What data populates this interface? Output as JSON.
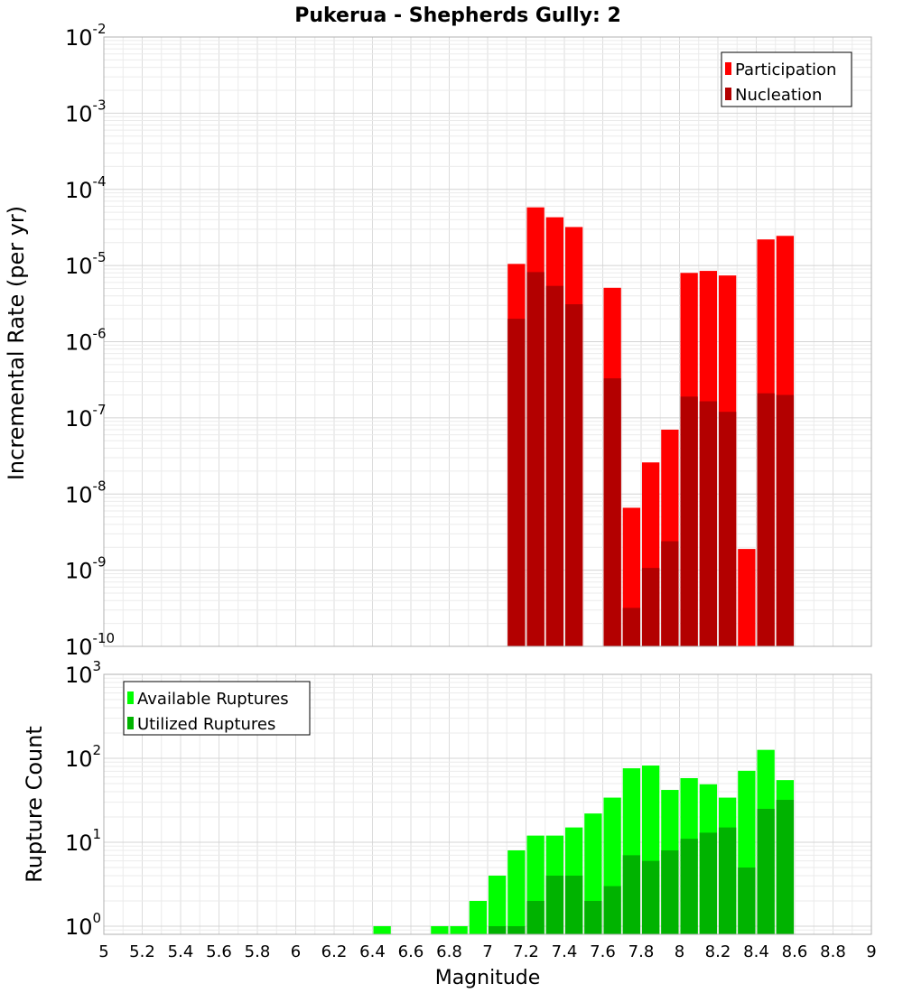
{
  "title": "Pukerua - Shepherds Gully: 2",
  "chart_data": [
    {
      "type": "bar",
      "ylabel": "Incremental Rate (per yr)",
      "xlabel": "",
      "y_scale": "log",
      "ylim": [
        1e-10,
        0.01
      ],
      "xlim": [
        5,
        9
      ],
      "ytick_labels": [
        {
          "base": "10",
          "exp": "-10",
          "value": 1e-10
        },
        {
          "base": "10",
          "exp": "-9",
          "value": 1e-09
        },
        {
          "base": "10",
          "exp": "-8",
          "value": 1e-08
        },
        {
          "base": "10",
          "exp": "-7",
          "value": 1e-07
        },
        {
          "base": "10",
          "exp": "-6",
          "value": 1e-06
        },
        {
          "base": "10",
          "exp": "-5",
          "value": 1e-05
        },
        {
          "base": "10",
          "exp": "-4",
          "value": 0.0001
        },
        {
          "base": "10",
          "exp": "-3",
          "value": 0.001
        },
        {
          "base": "10",
          "exp": "-2",
          "value": 0.01
        }
      ],
      "legend": {
        "position": "top-right",
        "entries": [
          "Participation",
          "Nucleation"
        ]
      },
      "grid": true,
      "series": [
        {
          "name": "Participation",
          "color": "#ff0000",
          "x": [
            7.15,
            7.25,
            7.35,
            7.45,
            7.65,
            7.75,
            7.85,
            7.95,
            8.05,
            8.15,
            8.25,
            8.35,
            8.45,
            8.55
          ],
          "values": [
            1.05e-05,
            5.8e-05,
            4.3e-05,
            3.2e-05,
            5.1e-06,
            6.6e-09,
            2.6e-08,
            7e-08,
            8e-06,
            8.5e-06,
            7.4e-06,
            1.9e-09,
            2.2e-05,
            2.45e-05
          ]
        },
        {
          "name": "Nucleation",
          "color": "#b30000",
          "x": [
            7.15,
            7.25,
            7.35,
            7.45,
            7.65,
            7.75,
            7.85,
            7.95,
            8.05,
            8.15,
            8.25,
            8.45,
            8.55
          ],
          "values": [
            2e-06,
            8.2e-06,
            5.4e-06,
            3.1e-06,
            3.3e-07,
            3.2e-10,
            1.07e-09,
            2.4e-09,
            1.9e-07,
            1.65e-07,
            1.2e-07,
            2.1e-07,
            2e-07
          ]
        }
      ]
    },
    {
      "type": "bar",
      "ylabel": "Rupture Count",
      "xlabel": "Magnitude",
      "y_scale": "log",
      "ylim": [
        0.8,
        1000
      ],
      "xlim": [
        5,
        9
      ],
      "ytick_labels": [
        {
          "base": "10",
          "exp": "0",
          "value": 1
        },
        {
          "base": "10",
          "exp": "1",
          "value": 10
        },
        {
          "base": "10",
          "exp": "2",
          "value": 100
        },
        {
          "base": "10",
          "exp": "3",
          "value": 1000
        }
      ],
      "xtick_labels": [
        "5",
        "5.2",
        "5.4",
        "5.6",
        "5.8",
        "6",
        "6.2",
        "6.4",
        "6.6",
        "6.8",
        "7",
        "7.2",
        "7.4",
        "7.6",
        "7.8",
        "8",
        "8.2",
        "8.4",
        "8.6",
        "8.8",
        "9"
      ],
      "legend": {
        "position": "top-left",
        "entries": [
          "Available Ruptures",
          "Utilized Ruptures"
        ]
      },
      "grid": true,
      "series": [
        {
          "name": "Available Ruptures",
          "color": "#00ff00",
          "x": [
            6.45,
            6.75,
            6.85,
            6.95,
            7.05,
            7.15,
            7.25,
            7.35,
            7.45,
            7.55,
            7.65,
            7.75,
            7.85,
            7.95,
            8.05,
            8.15,
            8.25,
            8.35,
            8.45,
            8.55
          ],
          "values": [
            1,
            1,
            1,
            2,
            4,
            8,
            12,
            12,
            15,
            22,
            34,
            76,
            82,
            42,
            58,
            49,
            34,
            71,
            126,
            55
          ]
        },
        {
          "name": "Utilized Ruptures",
          "color": "#00b300",
          "x": [
            7.05,
            7.15,
            7.25,
            7.35,
            7.45,
            7.55,
            7.65,
            7.75,
            7.85,
            7.95,
            8.05,
            8.15,
            8.25,
            8.35,
            8.45,
            8.55
          ],
          "values": [
            1,
            1,
            2,
            4,
            4,
            2,
            3,
            7,
            6,
            8,
            11,
            13,
            15,
            5,
            25,
            32
          ]
        }
      ]
    }
  ]
}
